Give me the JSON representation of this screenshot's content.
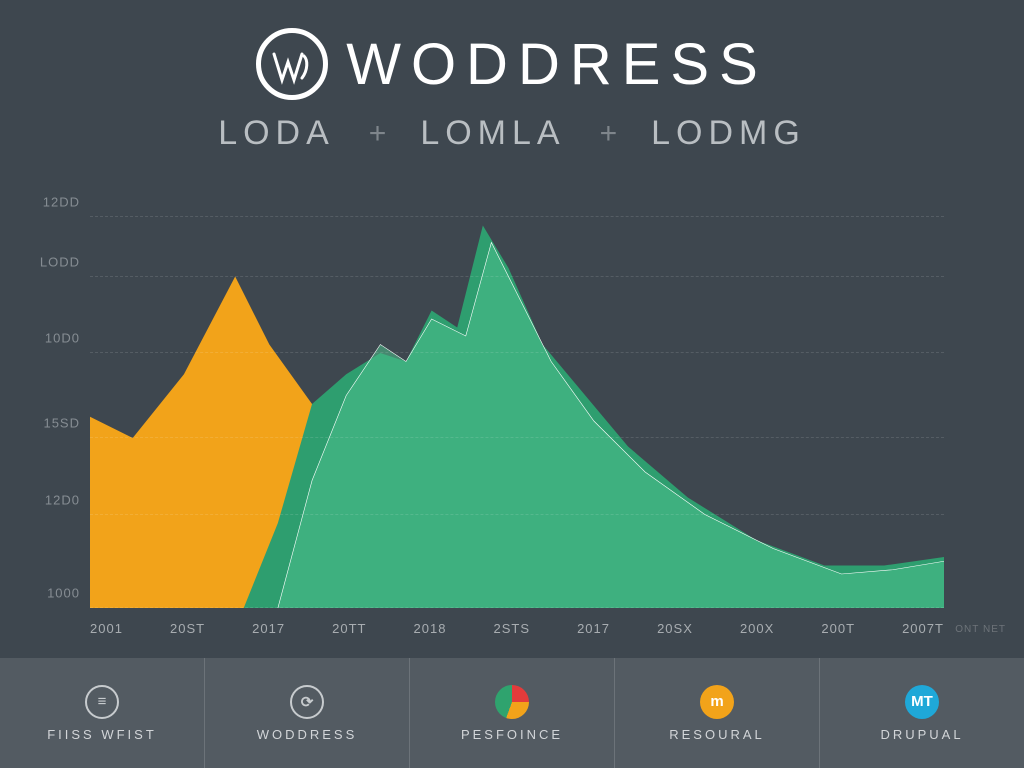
{
  "header": {
    "brand": "WODDRESS",
    "logo_glyph_color": "#ffffff"
  },
  "subhead": {
    "items": [
      "LODA",
      "LOMLA",
      "LODMG"
    ],
    "separator": "+"
  },
  "chart": {
    "type": "area",
    "background_color": "#3e474f",
    "grid_color": "rgba(255,255,255,0.12)",
    "ylim": [
      0,
      200
    ],
    "y_ticks": [
      {
        "pos": 0.0,
        "label": "1000"
      },
      {
        "pos": 0.22,
        "label": "12D0"
      },
      {
        "pos": 0.4,
        "label": "15SD"
      },
      {
        "pos": 0.6,
        "label": "10D0"
      },
      {
        "pos": 0.78,
        "label": "LODD"
      },
      {
        "pos": 0.92,
        "label": "12DD"
      }
    ],
    "x_labels": [
      "2001",
      "20ST",
      "2017",
      "20TT",
      "2018",
      "2STS",
      "2017",
      "20SX",
      "200X",
      "200T",
      "2007T"
    ],
    "x_right_note": "ONT\nNET",
    "series": [
      {
        "name": "orange",
        "fill": "#f2a31a",
        "stroke": "#f2a31a",
        "fill_opacity": 1.0,
        "points": [
          [
            0.0,
            0.45
          ],
          [
            0.05,
            0.4
          ],
          [
            0.11,
            0.55
          ],
          [
            0.17,
            0.78
          ],
          [
            0.21,
            0.62
          ],
          [
            0.26,
            0.48
          ],
          [
            0.31,
            0.38
          ],
          [
            0.36,
            0.3
          ],
          [
            0.4,
            0.2
          ],
          [
            0.45,
            0.12
          ],
          [
            0.52,
            0.08
          ],
          [
            0.62,
            0.05
          ],
          [
            0.75,
            0.03
          ],
          [
            0.88,
            0.02
          ],
          [
            1.0,
            0.01
          ]
        ]
      },
      {
        "name": "green-dark",
        "fill": "#2e9e6f",
        "stroke": "#2e9e6f",
        "fill_opacity": 1.0,
        "points": [
          [
            0.18,
            0.0
          ],
          [
            0.22,
            0.2
          ],
          [
            0.26,
            0.48
          ],
          [
            0.3,
            0.55
          ],
          [
            0.34,
            0.6
          ],
          [
            0.37,
            0.58
          ],
          [
            0.4,
            0.7
          ],
          [
            0.43,
            0.66
          ],
          [
            0.46,
            0.9
          ],
          [
            0.49,
            0.8
          ],
          [
            0.53,
            0.62
          ],
          [
            0.58,
            0.5
          ],
          [
            0.63,
            0.38
          ],
          [
            0.7,
            0.26
          ],
          [
            0.78,
            0.16
          ],
          [
            0.86,
            0.1
          ],
          [
            0.93,
            0.1
          ],
          [
            1.0,
            0.12
          ]
        ]
      },
      {
        "name": "green-light",
        "fill": "#4cbf8d",
        "stroke": "#ffffff",
        "stroke_width": 2,
        "fill_opacity": 0.55,
        "points": [
          [
            0.22,
            0.0
          ],
          [
            0.26,
            0.3
          ],
          [
            0.3,
            0.5
          ],
          [
            0.34,
            0.62
          ],
          [
            0.37,
            0.58
          ],
          [
            0.4,
            0.68
          ],
          [
            0.44,
            0.64
          ],
          [
            0.47,
            0.86
          ],
          [
            0.5,
            0.74
          ],
          [
            0.54,
            0.58
          ],
          [
            0.59,
            0.44
          ],
          [
            0.65,
            0.32
          ],
          [
            0.72,
            0.22
          ],
          [
            0.8,
            0.14
          ],
          [
            0.88,
            0.08
          ],
          [
            0.94,
            0.09
          ],
          [
            1.0,
            0.11
          ]
        ]
      }
    ]
  },
  "footer": {
    "items": [
      {
        "label": "FIISS WFIST",
        "icon": "menu",
        "style": "ring",
        "color": "#c7cbce"
      },
      {
        "label": "WODDRESS",
        "icon": "bolt",
        "style": "ring",
        "color": "#c7cbce"
      },
      {
        "label": "PESFOINCE",
        "icon": "pie",
        "style": "solid",
        "color": "#2fa36e",
        "accent": "#f2a31a"
      },
      {
        "label": "RESOURAL",
        "icon": "badge",
        "style": "solid",
        "color": "#f2a31a",
        "text": "m"
      },
      {
        "label": "DRUPUAL",
        "icon": "badge",
        "style": "solid",
        "color": "#1fa8d8",
        "text": "MT"
      }
    ]
  }
}
